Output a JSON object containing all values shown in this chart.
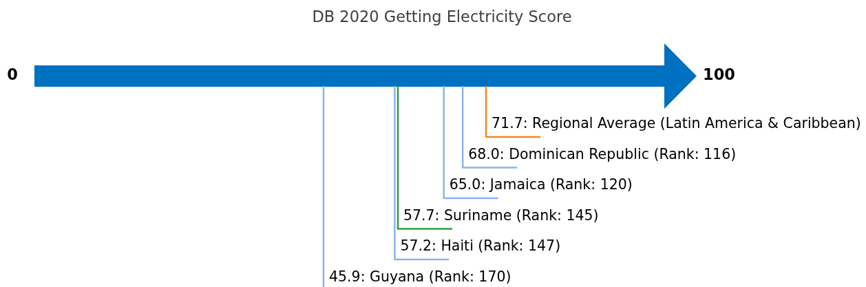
{
  "chart_data": {
    "type": "other",
    "title": "DB 2020 Getting Electricity Score",
    "values": [
      71.7,
      68.0,
      65.0,
      57.7,
      57.2,
      45.9
    ],
    "value_labels": [
      "71.7: Regional Average (Latin America & Caribbean)",
      "68.0: Dominican Republic (Rank: 116)",
      "65.0: Jamaica (Rank: 120)",
      "57.7: Suriname (Rank: 145)",
      "57.2: Haiti (Rank: 147)",
      "45.9: Guyana (Rank: 170)"
    ],
    "colors": [
      "#f5851f",
      "#8ab4f0",
      "#8ab4f0",
      "#2ca043",
      "#8ab4f0",
      "#8ab4f0"
    ],
    "annotations": [
      "0",
      "100"
    ]
  }
}
